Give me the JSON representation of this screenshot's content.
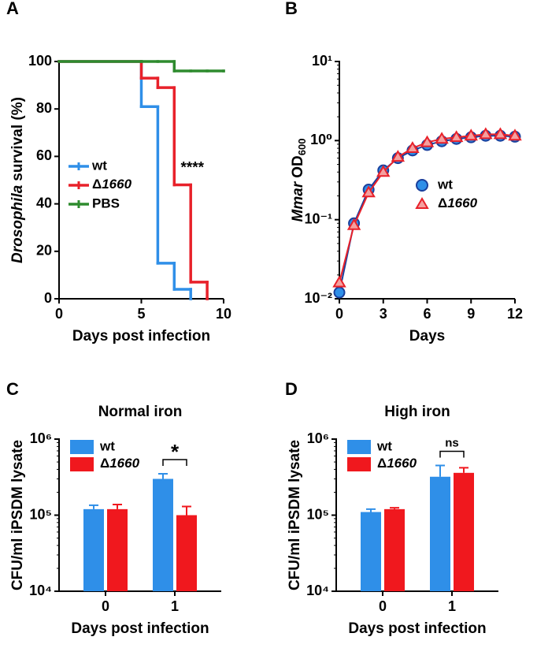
{
  "chart_data": [
    {
      "panel": "A",
      "type": "line",
      "step": true,
      "x": [
        0,
        5,
        6,
        7,
        8,
        9,
        10
      ],
      "xlim": [
        0,
        10
      ],
      "xticks": [
        0,
        5,
        10
      ],
      "ylim": [
        0,
        100
      ],
      "yticks": [
        0,
        20,
        40,
        60,
        80,
        100
      ],
      "xlabel": "Days post infection",
      "ylabel": [
        {
          "text": "Drosophila",
          "italic": true
        },
        {
          "text": "survival (%)"
        }
      ],
      "legend": "left",
      "annotation": "****",
      "series": [
        {
          "name": "wt",
          "color": "#2f8fe8",
          "values": [
            100,
            81,
            15,
            4,
            0,
            null,
            null
          ]
        },
        {
          "name": "Δ1660",
          "color": "#e8212a",
          "values": [
            100,
            93,
            89,
            48,
            7,
            0,
            null
          ]
        },
        {
          "name": "PBS",
          "color": "#2e8b2e",
          "values": [
            100,
            100,
            100,
            96,
            96,
            96,
            96
          ]
        }
      ]
    },
    {
      "panel": "B",
      "type": "line",
      "x": [
        0,
        1,
        2,
        3,
        4,
        5,
        6,
        7,
        8,
        9,
        10,
        11,
        12
      ],
      "xlim": [
        0,
        12
      ],
      "xticks": [
        0,
        3,
        6,
        9,
        12
      ],
      "ylog": true,
      "ylim": [
        0.01,
        10
      ],
      "yticks": [
        {
          "value": 0.01,
          "label": "10⁻²"
        },
        {
          "value": 0.1,
          "label": "10⁻¹"
        },
        {
          "value": 1,
          "label": "10⁰"
        },
        {
          "value": 10,
          "label": "10¹"
        }
      ],
      "xlabel": "Days",
      "ylabel": [
        {
          "text": "Mmar",
          "italic": true
        },
        {
          "text": "OD"
        },
        {
          "text": "600",
          "sub": true
        }
      ],
      "legend": "right",
      "series": [
        {
          "name": "wt",
          "color": "#2f8fe8",
          "edge": "#1a3f9c",
          "marker": "circle",
          "values": [
            0.012,
            0.09,
            0.24,
            0.42,
            0.6,
            0.75,
            0.88,
            0.98,
            1.05,
            1.1,
            1.15,
            1.15,
            1.12
          ]
        },
        {
          "name": "Δ1660",
          "color": "#f4a0a0",
          "edge": "#e8212a",
          "marker": "triangle",
          "values": [
            0.016,
            0.085,
            0.22,
            0.4,
            0.62,
            0.8,
            0.95,
            1.05,
            1.1,
            1.15,
            1.2,
            1.2,
            1.15
          ]
        }
      ]
    },
    {
      "panel": "C",
      "type": "bar",
      "title": "Normal iron",
      "categories": [
        "0",
        "1"
      ],
      "ylog": true,
      "ylim": [
        10000,
        1000000
      ],
      "yticks": [
        {
          "value": 10000,
          "label": "10⁴"
        },
        {
          "value": 100000,
          "label": "10⁵"
        },
        {
          "value": 1000000,
          "label": "10⁶"
        }
      ],
      "xlabel": "Days post infection",
      "ylabel": "CFU/ml iPSDM lysate",
      "legend": "top-left",
      "annotation": "*",
      "series": [
        {
          "name": "wt",
          "color": "#2f8fe8",
          "values": [
            120000,
            300000
          ],
          "errors": [
            15000,
            50000
          ]
        },
        {
          "name": "Δ1660",
          "color": "#f0181e",
          "values": [
            120000,
            100000
          ],
          "errors": [
            18000,
            30000
          ]
        }
      ]
    },
    {
      "panel": "D",
      "type": "bar",
      "title": "High iron",
      "categories": [
        "0",
        "1"
      ],
      "ylog": true,
      "ylim": [
        10000,
        1000000
      ],
      "yticks": [
        {
          "value": 10000,
          "label": "10⁴"
        },
        {
          "value": 100000,
          "label": "10⁵"
        },
        {
          "value": 1000000,
          "label": "10⁶"
        }
      ],
      "xlabel": "Days post infection",
      "ylabel": "CFU/ml iPSDM lysate",
      "legend": "top-left",
      "annotation": "ns",
      "series": [
        {
          "name": "wt",
          "color": "#2f8fe8",
          "values": [
            110000,
            320000
          ],
          "errors": [
            10000,
            130000
          ]
        },
        {
          "name": "Δ1660",
          "color": "#f0181e",
          "values": [
            120000,
            360000
          ],
          "errors": [
            5000,
            60000
          ]
        }
      ]
    }
  ]
}
